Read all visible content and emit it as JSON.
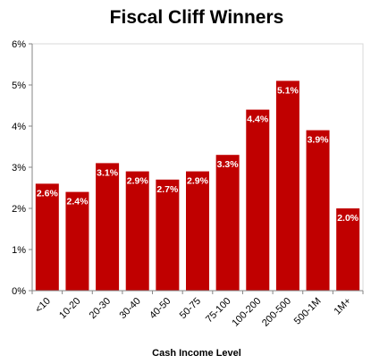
{
  "chart_data": {
    "type": "bar",
    "title": "Fiscal Cliff Winners",
    "xlabel": "Cash Income Level",
    "ylabel": "",
    "categories": [
      "<10",
      "10-20",
      "20-30",
      "30-40",
      "40-50",
      "50-75",
      "75-100",
      "100-200",
      "200-500",
      "500-1M",
      "1M+"
    ],
    "values": [
      2.6,
      2.4,
      3.1,
      2.9,
      2.7,
      2.9,
      3.3,
      4.4,
      5.1,
      3.9,
      2.0
    ],
    "data_labels": [
      "2.6%",
      "2.4%",
      "3.1%",
      "2.9%",
      "2.7%",
      "2.9%",
      "3.3%",
      "4.4%",
      "5.1%",
      "3.9%",
      "2.0%"
    ],
    "ylim": [
      0,
      6
    ],
    "yticks": [
      0,
      1,
      2,
      3,
      4,
      5,
      6
    ],
    "ytick_labels": [
      "0%",
      "1%",
      "2%",
      "3%",
      "4%",
      "5%",
      "6%"
    ],
    "grid": false,
    "legend": "none",
    "bar_color": "#C00000"
  }
}
